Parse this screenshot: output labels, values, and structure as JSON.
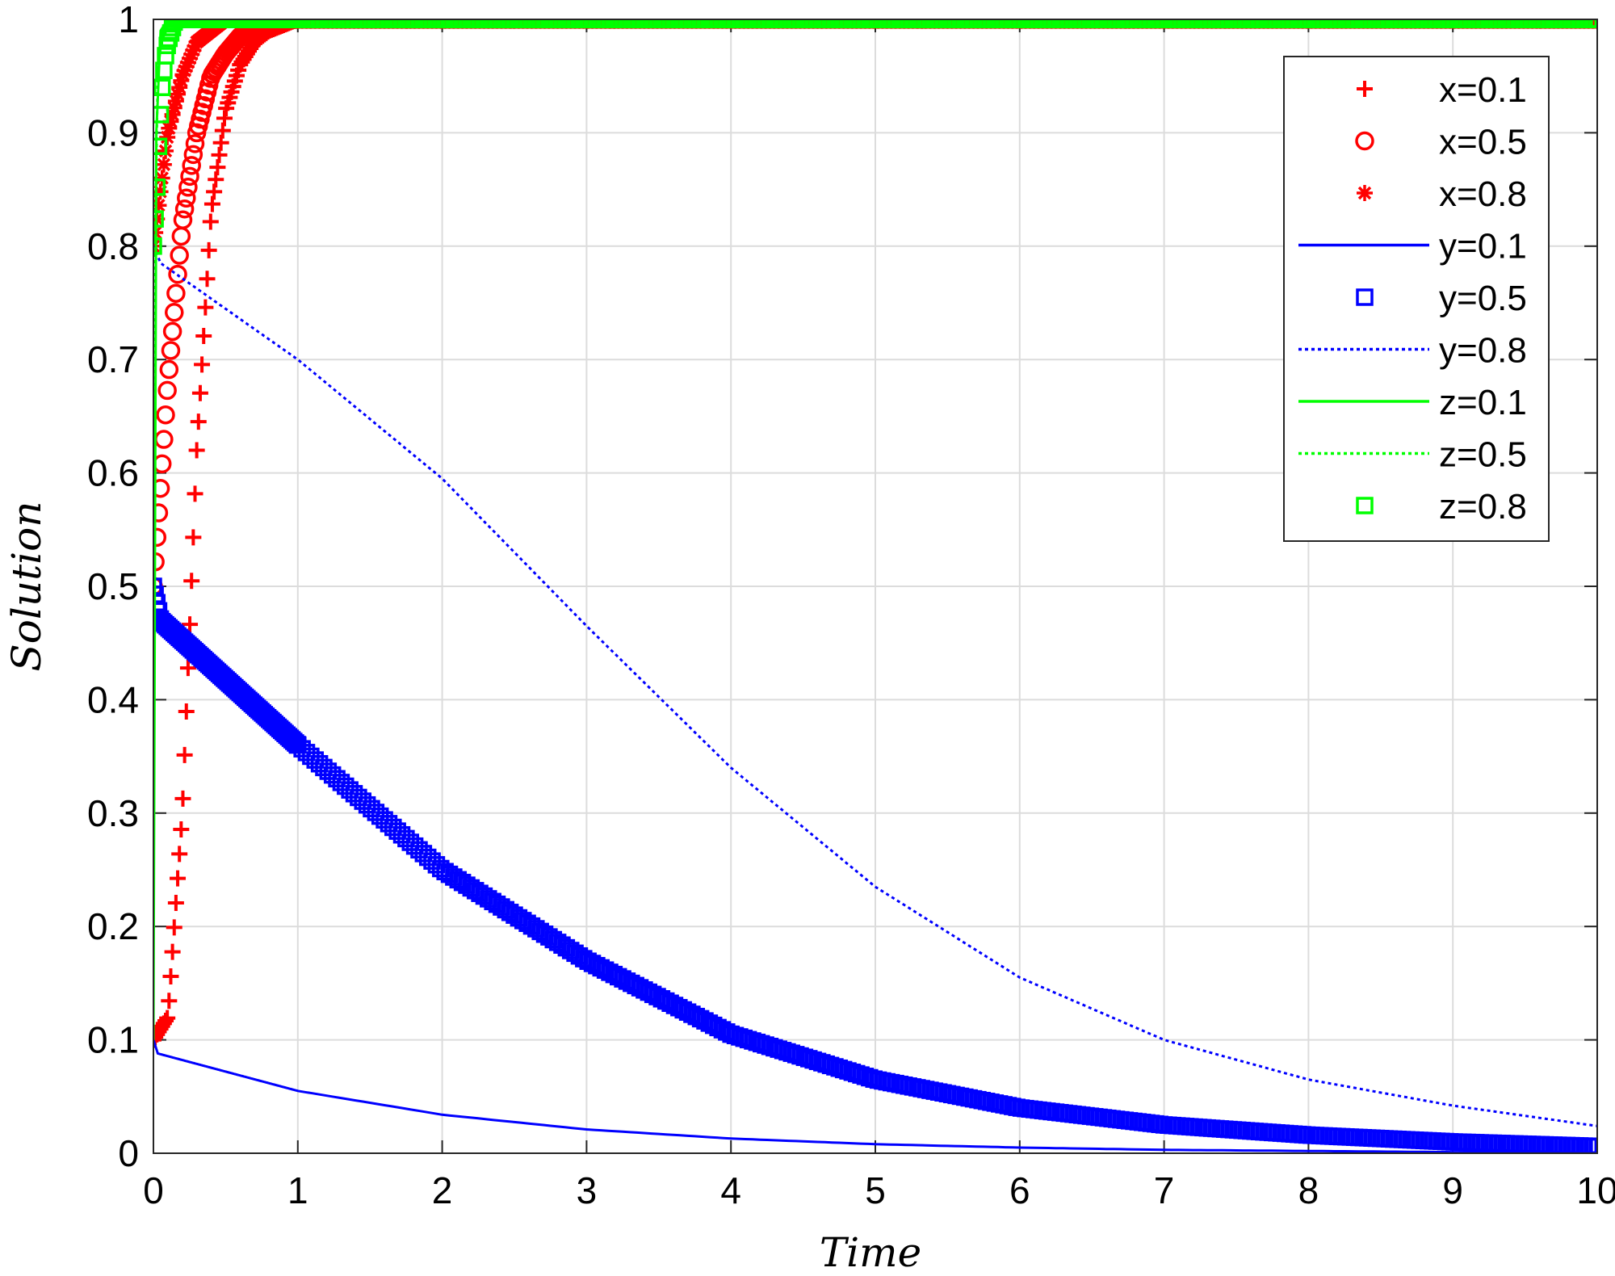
{
  "chart_data": {
    "type": "line",
    "title": "",
    "xlabel": "Time",
    "ylabel": "Solution",
    "xlim": [
      0,
      10
    ],
    "ylim": [
      0,
      1
    ],
    "xticks": [
      "0",
      "1",
      "2",
      "3",
      "4",
      "5",
      "6",
      "7",
      "8",
      "9",
      "10"
    ],
    "yticks": [
      "0",
      "0.1",
      "0.2",
      "0.3",
      "0.4",
      "0.5",
      "0.6",
      "0.7",
      "0.8",
      "0.9",
      "1"
    ],
    "grid": true,
    "legend_position": "top-right",
    "series": [
      {
        "name": "x=0.1",
        "color": "#ff0000",
        "marker": "plus",
        "style": "markers",
        "x0": 0.1,
        "points": [
          [
            0,
            0.1
          ],
          [
            0.1,
            0.12
          ],
          [
            0.2,
            0.3
          ],
          [
            0.3,
            0.62
          ],
          [
            0.4,
            0.83
          ],
          [
            0.5,
            0.92
          ],
          [
            0.6,
            0.96
          ],
          [
            0.7,
            0.98
          ],
          [
            0.8,
            0.99
          ],
          [
            1,
            1
          ],
          [
            10,
            1
          ]
        ]
      },
      {
        "name": "x=0.5",
        "color": "#ff0000",
        "marker": "circle",
        "style": "markers",
        "x0": 0.5,
        "points": [
          [
            0,
            0.5
          ],
          [
            0.1,
            0.68
          ],
          [
            0.2,
            0.82
          ],
          [
            0.3,
            0.9
          ],
          [
            0.4,
            0.95
          ],
          [
            0.5,
            0.97
          ],
          [
            0.6,
            0.985
          ],
          [
            0.8,
            1
          ],
          [
            10,
            1
          ]
        ]
      },
      {
        "name": "x=0.8",
        "color": "#ff0000",
        "marker": "asterisk",
        "style": "markers",
        "x0": 0.8,
        "points": [
          [
            0,
            0.8
          ],
          [
            0.1,
            0.9
          ],
          [
            0.2,
            0.95
          ],
          [
            0.3,
            0.98
          ],
          [
            0.5,
            1
          ],
          [
            10,
            1
          ]
        ]
      },
      {
        "name": "y=0.1",
        "color": "#0000ff",
        "marker": "none",
        "style": "solid",
        "x0": 0.1,
        "points": [
          [
            0,
            0.1
          ],
          [
            0.03,
            0.088
          ],
          [
            1,
            0.055
          ],
          [
            2,
            0.034
          ],
          [
            3,
            0.021
          ],
          [
            4,
            0.013
          ],
          [
            5,
            0.008
          ],
          [
            6,
            0.005
          ],
          [
            7,
            0.003
          ],
          [
            8,
            0.002
          ],
          [
            9,
            0.001
          ],
          [
            10,
            0.0007
          ]
        ]
      },
      {
        "name": "y=0.5",
        "color": "#0000ff",
        "marker": "square",
        "style": "markers",
        "x0": 0.5,
        "points": [
          [
            0,
            0.5
          ],
          [
            0.05,
            0.47
          ],
          [
            1,
            0.36
          ],
          [
            2,
            0.25
          ],
          [
            3,
            0.17
          ],
          [
            4,
            0.105
          ],
          [
            5,
            0.065
          ],
          [
            6,
            0.04
          ],
          [
            7,
            0.025
          ],
          [
            8,
            0.016
          ],
          [
            9,
            0.01
          ],
          [
            10,
            0.006
          ]
        ]
      },
      {
        "name": "y=0.8",
        "color": "#0000ff",
        "marker": "none",
        "style": "dotted",
        "x0": 0.8,
        "points": [
          [
            0,
            0.8
          ],
          [
            0.05,
            0.785
          ],
          [
            1,
            0.7
          ],
          [
            2,
            0.595
          ],
          [
            3,
            0.465
          ],
          [
            4,
            0.34
          ],
          [
            5,
            0.235
          ],
          [
            6,
            0.155
          ],
          [
            7,
            0.1
          ],
          [
            8,
            0.065
          ],
          [
            9,
            0.042
          ],
          [
            10,
            0.024
          ]
        ]
      },
      {
        "name": "z=0.1",
        "color": "#00ff00",
        "marker": "none",
        "style": "solid",
        "x0": 0.1,
        "points": [
          [
            0,
            0.1
          ],
          [
            0.01,
            0.5
          ],
          [
            0.02,
            0.9
          ],
          [
            0.05,
            0.99
          ],
          [
            0.1,
            1
          ],
          [
            10,
            1
          ]
        ]
      },
      {
        "name": "z=0.5",
        "color": "#00ff00",
        "marker": "none",
        "style": "dotted",
        "x0": 0.5,
        "points": [
          [
            0,
            0.5
          ],
          [
            0.01,
            0.8
          ],
          [
            0.03,
            0.95
          ],
          [
            0.06,
            0.99
          ],
          [
            0.1,
            1
          ],
          [
            10,
            1
          ]
        ]
      },
      {
        "name": "z=0.8",
        "color": "#00ff00",
        "marker": "square",
        "style": "markers",
        "x0": 0.8,
        "points": [
          [
            0,
            0.8
          ],
          [
            0.02,
            0.84
          ],
          [
            0.03,
            0.87
          ],
          [
            0.04,
            0.9
          ],
          [
            0.05,
            0.92
          ],
          [
            0.06,
            0.94
          ],
          [
            0.08,
            0.965
          ],
          [
            0.1,
            0.98
          ],
          [
            0.15,
            1
          ],
          [
            10,
            1
          ]
        ]
      }
    ]
  }
}
